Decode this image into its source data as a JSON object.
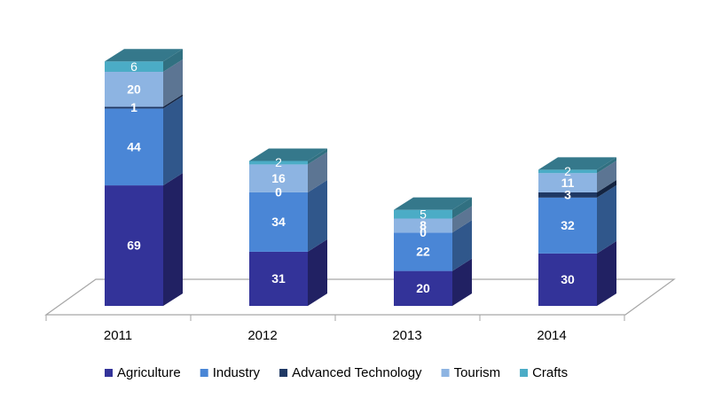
{
  "chart_data": {
    "type": "bar3d_stacked",
    "categories": [
      "2011",
      "2012",
      "2013",
      "2014"
    ],
    "series": [
      {
        "name": "Agriculture",
        "color": "#333399",
        "values": [
          69,
          31,
          20,
          30
        ]
      },
      {
        "name": "Industry",
        "color": "#4a86d6",
        "values": [
          44,
          34,
          22,
          32
        ]
      },
      {
        "name": "Advanced Technology",
        "color": "#1f3864",
        "values": [
          1,
          0,
          0,
          3
        ]
      },
      {
        "name": "Tourism",
        "color": "#8db4e2",
        "values": [
          20,
          16,
          8,
          11
        ]
      },
      {
        "name": "Crafts",
        "color": "#4bacc6",
        "values": [
          6,
          2,
          5,
          2
        ]
      }
    ],
    "legend": "bottom"
  }
}
